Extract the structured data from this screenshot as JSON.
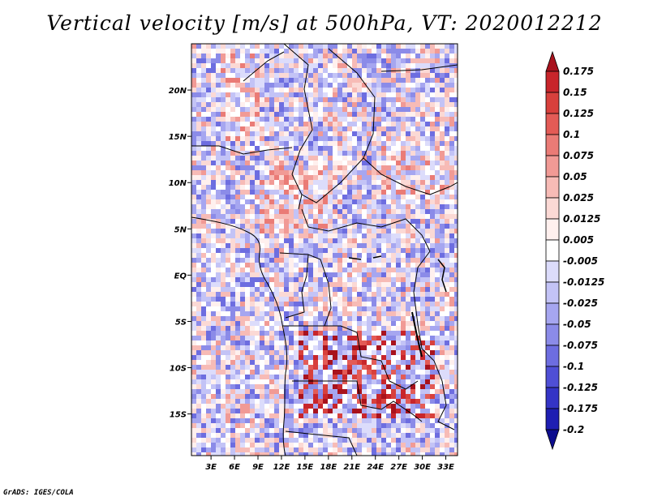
{
  "title": "Vertical velocity [m/s] at 500hPa, VT: 2020012212",
  "footer": "GrADS: IGES/COLA",
  "map": {
    "variable": "Vertical velocity",
    "units": "m/s",
    "level": "500hPa",
    "valid_time": "2020012212",
    "lat_labels": [
      "20N",
      "15N",
      "10N",
      "5N",
      "EQ",
      "5S",
      "10S",
      "15S"
    ],
    "lat_values": [
      20,
      15,
      10,
      5,
      0,
      -5,
      -10,
      -15
    ],
    "lon_labels": [
      "3E",
      "6E",
      "9E",
      "12E",
      "15E",
      "18E",
      "21E",
      "24E",
      "27E",
      "30E",
      "33E"
    ],
    "lon_values": [
      3,
      6,
      9,
      12,
      15,
      18,
      21,
      24,
      27,
      30,
      33
    ],
    "lon_range": [
      0.5,
      34.5
    ],
    "lat_range": [
      -19.5,
      25
    ]
  },
  "colorbar": {
    "labels": [
      "0.175",
      "0.15",
      "0.125",
      "0.1",
      "0.075",
      "0.05",
      "0.025",
      "0.0125",
      "0.005",
      "-0.005",
      "-0.0125",
      "-0.025",
      "-0.05",
      "-0.075",
      "-0.1",
      "-0.125",
      "-0.175",
      "-0.2"
    ],
    "colors": [
      "#a8121d",
      "#c8252b",
      "#d8403c",
      "#e35b56",
      "#ea7b76",
      "#f19a95",
      "#f7bbb6",
      "#fbd9d5",
      "#fff0ee",
      "#ffffff",
      "#dcdcfb",
      "#c3c3f6",
      "#a6a6f0",
      "#8b8be8",
      "#6d6de0",
      "#4f4fd6",
      "#3434c6",
      "#1e1eb2",
      "#0d0d8e"
    ]
  }
}
